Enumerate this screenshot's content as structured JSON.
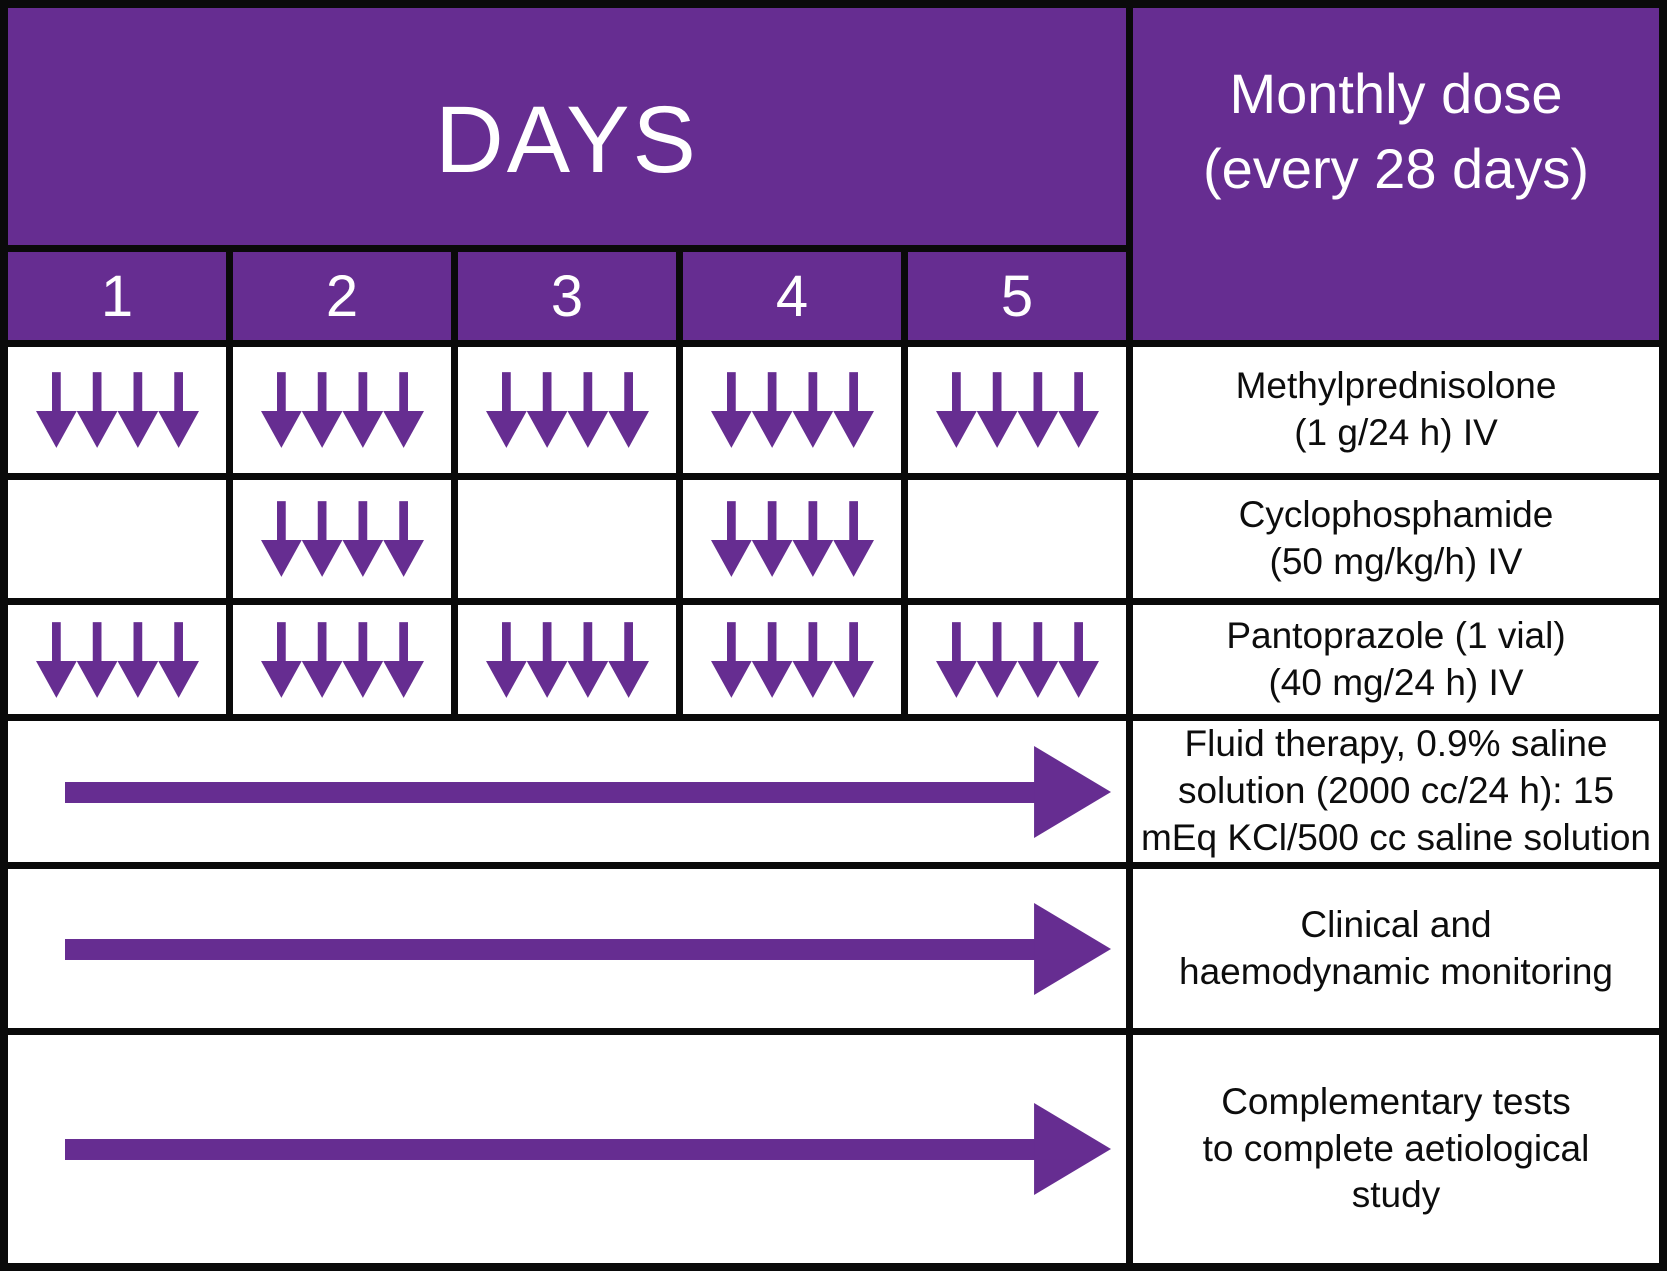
{
  "colors": {
    "purple": "#662D91",
    "grid_line": "#0a0a0a",
    "cell_background": "#ffffff",
    "header_text": "#ffffff",
    "label_text": "#0d0d0d"
  },
  "icons": {
    "daily_dose": "down-arrow-icon",
    "continuous_timeline": "right-arrow-icon"
  },
  "header": {
    "days_title": "DAYS",
    "day_numbers": [
      "1",
      "2",
      "3",
      "4",
      "5"
    ],
    "monthly_dose": {
      "line1": "Monthly dose",
      "line2": "(every 28 days)"
    }
  },
  "schedule": {
    "drug_rows": [
      {
        "name": "Methylprednisolone",
        "lines": [
          "Methylprednisolone",
          "(1 g/24 h) IV"
        ],
        "days_with_arrows": [
          1,
          2,
          3,
          4,
          5
        ],
        "arrows_per_day": 4
      },
      {
        "name": "Cyclophosphamide",
        "lines": [
          "Cyclophosphamide",
          "(50 mg/kg/h) IV"
        ],
        "days_with_arrows": [
          2,
          4
        ],
        "arrows_per_day": 4
      },
      {
        "name": "Pantoprazole",
        "lines": [
          "Pantoprazole (1 vial)",
          "(40 mg/24 h) IV"
        ],
        "days_with_arrows": [
          1,
          2,
          3,
          4,
          5
        ],
        "arrows_per_day": 4
      }
    ],
    "continuous_rows": [
      {
        "name": "Fluid therapy",
        "lines": [
          "Fluid therapy, 0.9% saline",
          "solution (2000 cc/24 h): 15",
          "mEq KCl/500 cc saline solution"
        ],
        "spans_days": "1-5"
      },
      {
        "name": "Clinical and haemodynamic monitoring",
        "lines": [
          "Clinical and",
          "haemodynamic monitoring"
        ],
        "spans_days": "1-5"
      },
      {
        "name": "Complementary tests",
        "lines": [
          "Complementary tests",
          "to complete aetiological",
          "study"
        ],
        "spans_days": "1-5"
      }
    ]
  }
}
